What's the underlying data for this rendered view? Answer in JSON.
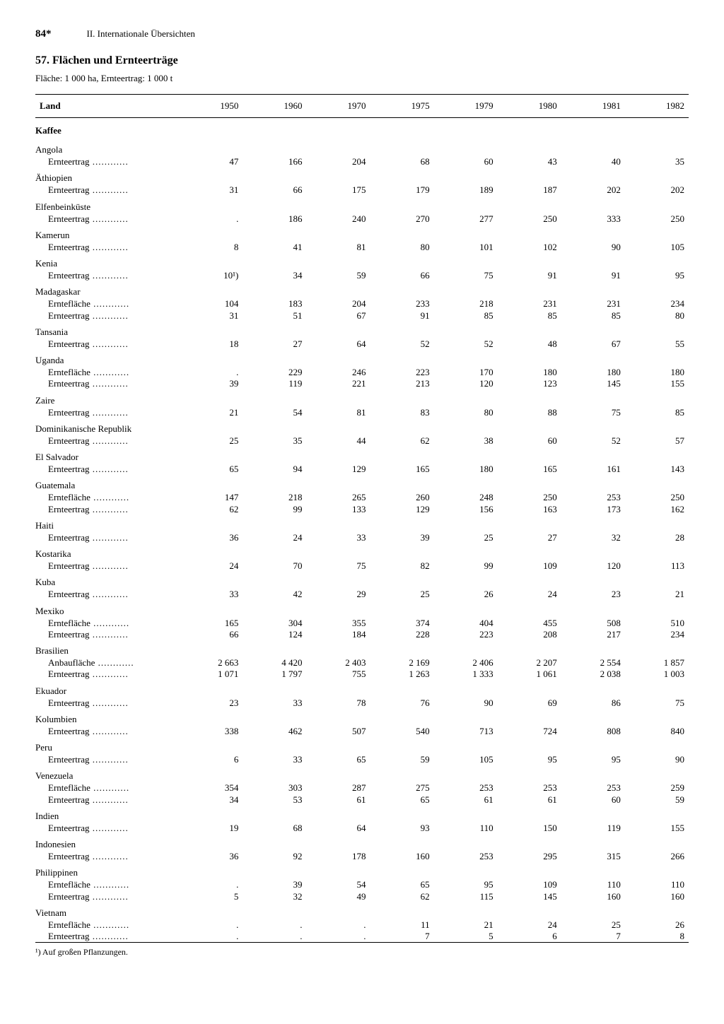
{
  "page_number": "84*",
  "header": "II. Internationale Übersichten",
  "title": "57. Flächen und Ernteerträge",
  "subtitle": "Fläche: 1 000 ha, Ernteertrag: 1 000 t",
  "col_label": "Land",
  "years": [
    "1950",
    "1960",
    "1970",
    "1975",
    "1979",
    "1980",
    "1981",
    "1982"
  ],
  "category": "Kaffee",
  "footnote": "¹) Auf großen Pflanzungen.",
  "countries": [
    {
      "name": "Angola",
      "rows": [
        {
          "label": "Ernteertrag",
          "v": [
            "47",
            "166",
            "204",
            "68",
            "60",
            "43",
            "40",
            "35"
          ]
        }
      ]
    },
    {
      "name": "Äthiopien",
      "rows": [
        {
          "label": "Ernteertrag",
          "v": [
            "31",
            "66",
            "175",
            "179",
            "189",
            "187",
            "202",
            "202"
          ]
        }
      ]
    },
    {
      "name": "Elfenbeinküste",
      "rows": [
        {
          "label": "Ernteertrag",
          "v": [
            ".",
            "186",
            "240",
            "270",
            "277",
            "250",
            "333",
            "250"
          ]
        }
      ]
    },
    {
      "name": "Kamerun",
      "rows": [
        {
          "label": "Ernteertrag",
          "v": [
            "8",
            "41",
            "81",
            "80",
            "101",
            "102",
            "90",
            "105"
          ]
        }
      ]
    },
    {
      "name": "Kenia",
      "rows": [
        {
          "label": "Ernteertrag",
          "v": [
            "10¹)",
            "34",
            "59",
            "66",
            "75",
            "91",
            "91",
            "95"
          ]
        }
      ]
    },
    {
      "name": "Madagaskar",
      "rows": [
        {
          "label": "Erntefläche",
          "v": [
            "104",
            "183",
            "204",
            "233",
            "218",
            "231",
            "231",
            "234"
          ]
        },
        {
          "label": "Ernteertrag",
          "v": [
            "31",
            "51",
            "67",
            "91",
            "85",
            "85",
            "85",
            "80"
          ]
        }
      ]
    },
    {
      "name": "Tansania",
      "rows": [
        {
          "label": "Ernteertrag",
          "v": [
            "18",
            "27",
            "64",
            "52",
            "52",
            "48",
            "67",
            "55"
          ]
        }
      ]
    },
    {
      "name": "Uganda",
      "rows": [
        {
          "label": "Erntefläche",
          "v": [
            ".",
            "229",
            "246",
            "223",
            "170",
            "180",
            "180",
            "180"
          ]
        },
        {
          "label": "Ernteertrag",
          "v": [
            "39",
            "119",
            "221",
            "213",
            "120",
            "123",
            "145",
            "155"
          ]
        }
      ]
    },
    {
      "name": "Zaire",
      "rows": [
        {
          "label": "Ernteertrag",
          "v": [
            "21",
            "54",
            "81",
            "83",
            "80",
            "88",
            "75",
            "85"
          ]
        }
      ]
    },
    {
      "name": "Dominikanische Republik",
      "rows": [
        {
          "label": "Ernteertrag",
          "v": [
            "25",
            "35",
            "44",
            "62",
            "38",
            "60",
            "52",
            "57"
          ]
        }
      ]
    },
    {
      "name": "El Salvador",
      "rows": [
        {
          "label": "Ernteertrag",
          "v": [
            "65",
            "94",
            "129",
            "165",
            "180",
            "165",
            "161",
            "143"
          ]
        }
      ]
    },
    {
      "name": "Guatemala",
      "rows": [
        {
          "label": "Erntefläche",
          "v": [
            "147",
            "218",
            "265",
            "260",
            "248",
            "250",
            "253",
            "250"
          ]
        },
        {
          "label": "Ernteertrag",
          "v": [
            "62",
            "99",
            "133",
            "129",
            "156",
            "163",
            "173",
            "162"
          ]
        }
      ]
    },
    {
      "name": "Haiti",
      "rows": [
        {
          "label": "Ernteertrag",
          "v": [
            "36",
            "24",
            "33",
            "39",
            "25",
            "27",
            "32",
            "28"
          ]
        }
      ]
    },
    {
      "name": "Kostarika",
      "rows": [
        {
          "label": "Ernteertrag",
          "v": [
            "24",
            "70",
            "75",
            "82",
            "99",
            "109",
            "120",
            "113"
          ]
        }
      ]
    },
    {
      "name": "Kuba",
      "rows": [
        {
          "label": "Ernteertrag",
          "v": [
            "33",
            "42",
            "29",
            "25",
            "26",
            "24",
            "23",
            "21"
          ]
        }
      ]
    },
    {
      "name": "Mexiko",
      "rows": [
        {
          "label": "Erntefläche",
          "v": [
            "165",
            "304",
            "355",
            "374",
            "404",
            "455",
            "508",
            "510"
          ]
        },
        {
          "label": "Ernteertrag",
          "v": [
            "66",
            "124",
            "184",
            "228",
            "223",
            "208",
            "217",
            "234"
          ]
        }
      ]
    },
    {
      "name": "Brasilien",
      "rows": [
        {
          "label": "Anbaufläche",
          "v": [
            "2 663",
            "4 420",
            "2 403",
            "2 169",
            "2 406",
            "2 207",
            "2 554",
            "1 857"
          ]
        },
        {
          "label": "Ernteertrag",
          "v": [
            "1 071",
            "1 797",
            "755",
            "1 263",
            "1 333",
            "1 061",
            "2 038",
            "1 003"
          ]
        }
      ]
    },
    {
      "name": "Ekuador",
      "rows": [
        {
          "label": "Ernteertrag",
          "v": [
            "23",
            "33",
            "78",
            "76",
            "90",
            "69",
            "86",
            "75"
          ]
        }
      ]
    },
    {
      "name": "Kolumbien",
      "rows": [
        {
          "label": "Ernteertrag",
          "v": [
            "338",
            "462",
            "507",
            "540",
            "713",
            "724",
            "808",
            "840"
          ]
        }
      ]
    },
    {
      "name": "Peru",
      "rows": [
        {
          "label": "Ernteertrag",
          "v": [
            "6",
            "33",
            "65",
            "59",
            "105",
            "95",
            "95",
            "90"
          ]
        }
      ]
    },
    {
      "name": "Venezuela",
      "rows": [
        {
          "label": "Erntefläche",
          "v": [
            "354",
            "303",
            "287",
            "275",
            "253",
            "253",
            "253",
            "259"
          ]
        },
        {
          "label": "Ernteertrag",
          "v": [
            "34",
            "53",
            "61",
            "65",
            "61",
            "61",
            "60",
            "59"
          ]
        }
      ]
    },
    {
      "name": "Indien",
      "rows": [
        {
          "label": "Ernteertrag",
          "v": [
            "19",
            "68",
            "64",
            "93",
            "110",
            "150",
            "119",
            "155"
          ]
        }
      ]
    },
    {
      "name": "Indonesien",
      "rows": [
        {
          "label": "Ernteertrag",
          "v": [
            "36",
            "92",
            "178",
            "160",
            "253",
            "295",
            "315",
            "266"
          ]
        }
      ]
    },
    {
      "name": "Philippinen",
      "rows": [
        {
          "label": "Erntefläche",
          "v": [
            ".",
            "39",
            "54",
            "65",
            "95",
            "109",
            "110",
            "110"
          ]
        },
        {
          "label": "Ernteertrag",
          "v": [
            "5",
            "32",
            "49",
            "62",
            "115",
            "145",
            "160",
            "160"
          ]
        }
      ]
    },
    {
      "name": "Vietnam",
      "rows": [
        {
          "label": "Erntefläche",
          "v": [
            ".",
            ".",
            ".",
            "11",
            "21",
            "24",
            "25",
            "26"
          ]
        },
        {
          "label": "Ernteertrag",
          "v": [
            ".",
            ".",
            ".",
            "7",
            "5",
            "6",
            "7",
            "8"
          ]
        }
      ]
    }
  ]
}
